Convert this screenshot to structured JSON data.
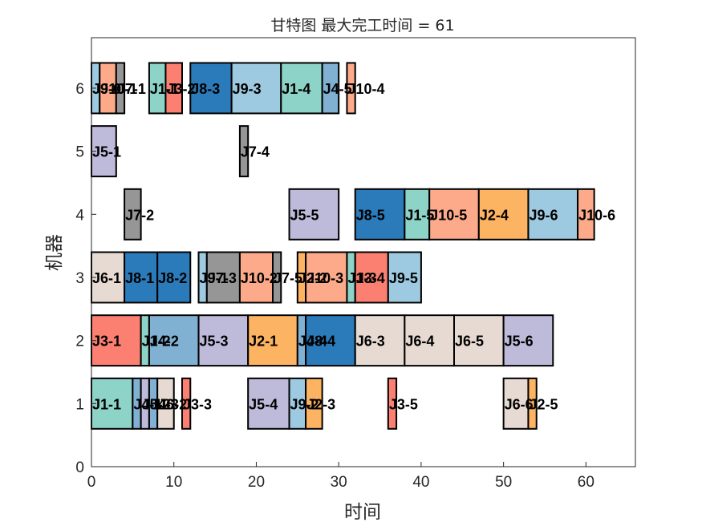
{
  "chart_data": {
    "type": "gantt",
    "title": "甘特图 最大完工时间 = 61",
    "xlabel": "时间",
    "ylabel": "机器",
    "xlim": [
      0,
      66
    ],
    "ylim": [
      0,
      6.8
    ],
    "xticks": [
      0,
      10,
      20,
      30,
      40,
      50,
      60
    ],
    "yticks": [
      0,
      1,
      2,
      3,
      4,
      5,
      6
    ],
    "grid": false,
    "job_colors": {
      "J1": "#8dd3c7",
      "J2": "#fdb462",
      "J3": "#fb8072",
      "J4": "#80b1d3",
      "J5": "#bebada",
      "J6": "#e6dad2",
      "J7": "#969696",
      "J8": "#2b7bba",
      "J9": "#9ecae1",
      "J10": "#fcaa8a"
    },
    "tasks": [
      {
        "machine": 1,
        "start": 0,
        "end": 5,
        "job": "J1",
        "label": "J1-1"
      },
      {
        "machine": 1,
        "start": 5,
        "end": 6,
        "job": "J4",
        "label": "J4-1"
      },
      {
        "machine": 1,
        "start": 6,
        "end": 7,
        "job": "J5",
        "label": "J5-2"
      },
      {
        "machine": 1,
        "start": 7,
        "end": 8,
        "job": "J4",
        "label": "J4-3"
      },
      {
        "machine": 1,
        "start": 8,
        "end": 10,
        "job": "J6",
        "label": "J6-2"
      },
      {
        "machine": 1,
        "start": 11,
        "end": 12,
        "job": "J3",
        "label": "J3-3"
      },
      {
        "machine": 1,
        "start": 19,
        "end": 24,
        "job": "J5",
        "label": "J5-4"
      },
      {
        "machine": 1,
        "start": 24,
        "end": 26,
        "job": "J9",
        "label": "J9-2"
      },
      {
        "machine": 1,
        "start": 26,
        "end": 28,
        "job": "J2",
        "label": "J2-3"
      },
      {
        "machine": 1,
        "start": 36,
        "end": 37,
        "job": "J3",
        "label": "J3-5"
      },
      {
        "machine": 1,
        "start": 50,
        "end": 53,
        "job": "J6",
        "label": "J6-6"
      },
      {
        "machine": 1,
        "start": 53,
        "end": 54,
        "job": "J2",
        "label": "J2-5"
      },
      {
        "machine": 2,
        "start": 0,
        "end": 6,
        "job": "J3",
        "label": "J3-1"
      },
      {
        "machine": 2,
        "start": 6,
        "end": 7,
        "job": "J1",
        "label": "J1-2"
      },
      {
        "machine": 2,
        "start": 7,
        "end": 13,
        "job": "J4",
        "label": "J4-2"
      },
      {
        "machine": 2,
        "start": 13,
        "end": 19,
        "job": "J5",
        "label": "J5-3"
      },
      {
        "machine": 2,
        "start": 19,
        "end": 25,
        "job": "J2",
        "label": "J2-1"
      },
      {
        "machine": 2,
        "start": 25,
        "end": 26,
        "job": "J4",
        "label": "J4-4"
      },
      {
        "machine": 2,
        "start": 26,
        "end": 32,
        "job": "J8",
        "label": "J8-4"
      },
      {
        "machine": 2,
        "start": 32,
        "end": 38,
        "job": "J6",
        "label": "J6-3"
      },
      {
        "machine": 2,
        "start": 38,
        "end": 44,
        "job": "J6",
        "label": "J6-4"
      },
      {
        "machine": 2,
        "start": 44,
        "end": 50,
        "job": "J6",
        "label": "J6-5"
      },
      {
        "machine": 2,
        "start": 50,
        "end": 56,
        "job": "J5",
        "label": "J5-6"
      },
      {
        "machine": 3,
        "start": 0,
        "end": 4,
        "job": "J6",
        "label": "J6-1"
      },
      {
        "machine": 3,
        "start": 4,
        "end": 8,
        "job": "J8",
        "label": "J8-1"
      },
      {
        "machine": 3,
        "start": 8,
        "end": 12,
        "job": "J8",
        "label": "J8-2"
      },
      {
        "machine": 3,
        "start": 13,
        "end": 14,
        "job": "J9",
        "label": "J9-1"
      },
      {
        "machine": 3,
        "start": 14,
        "end": 18,
        "job": "J7",
        "label": "J7-3"
      },
      {
        "machine": 3,
        "start": 18,
        "end": 22,
        "job": "J10",
        "label": "J10-2"
      },
      {
        "machine": 3,
        "start": 22,
        "end": 23,
        "job": "J7",
        "label": "J7-5"
      },
      {
        "machine": 3,
        "start": 25,
        "end": 26,
        "job": "J2",
        "label": "J2-2"
      },
      {
        "machine": 3,
        "start": 26,
        "end": 31,
        "job": "J10",
        "label": "J10-3"
      },
      {
        "machine": 3,
        "start": 31,
        "end": 32,
        "job": "J1",
        "label": "J1-3"
      },
      {
        "machine": 3,
        "start": 32,
        "end": 36,
        "job": "J3",
        "label": "J3-4"
      },
      {
        "machine": 3,
        "start": 36,
        "end": 40,
        "job": "J9",
        "label": "J9-5"
      },
      {
        "machine": 4,
        "start": 4,
        "end": 6,
        "job": "J7",
        "label": "J7-2"
      },
      {
        "machine": 4,
        "start": 24,
        "end": 30,
        "job": "J5",
        "label": "J5-5"
      },
      {
        "machine": 4,
        "start": 32,
        "end": 38,
        "job": "J8",
        "label": "J8-5"
      },
      {
        "machine": 4,
        "start": 38,
        "end": 41,
        "job": "J1",
        "label": "J1-5"
      },
      {
        "machine": 4,
        "start": 41,
        "end": 47,
        "job": "J10",
        "label": "J10-5"
      },
      {
        "machine": 4,
        "start": 47,
        "end": 53,
        "job": "J2",
        "label": "J2-4"
      },
      {
        "machine": 4,
        "start": 53,
        "end": 59,
        "job": "J9",
        "label": "J9-6"
      },
      {
        "machine": 4,
        "start": 59,
        "end": 61,
        "job": "J10",
        "label": "J10-6"
      },
      {
        "machine": 5,
        "start": 0,
        "end": 3,
        "job": "J5",
        "label": "J5-1"
      },
      {
        "machine": 5,
        "start": 18,
        "end": 19,
        "job": "J7",
        "label": "J7-4"
      },
      {
        "machine": 6,
        "start": 0,
        "end": 1,
        "job": "J9",
        "label": "J9-0"
      },
      {
        "machine": 6,
        "start": 1,
        "end": 3,
        "job": "J10",
        "label": "J10-1"
      },
      {
        "machine": 6,
        "start": 3,
        "end": 4,
        "job": "J7",
        "label": "J7-1"
      },
      {
        "machine": 6,
        "start": 7,
        "end": 9,
        "job": "J1",
        "label": "J1-1"
      },
      {
        "machine": 6,
        "start": 9,
        "end": 11,
        "job": "J3",
        "label": "J3-2"
      },
      {
        "machine": 6,
        "start": 12,
        "end": 17,
        "job": "J8",
        "label": "J8-3"
      },
      {
        "machine": 6,
        "start": 17,
        "end": 23,
        "job": "J9",
        "label": "J9-3"
      },
      {
        "machine": 6,
        "start": 23,
        "end": 28,
        "job": "J1",
        "label": "J1-4"
      },
      {
        "machine": 6,
        "start": 28,
        "end": 30,
        "job": "J4",
        "label": "J4-5"
      },
      {
        "machine": 6,
        "start": 31,
        "end": 32,
        "job": "J10",
        "label": "J10-4"
      }
    ]
  }
}
